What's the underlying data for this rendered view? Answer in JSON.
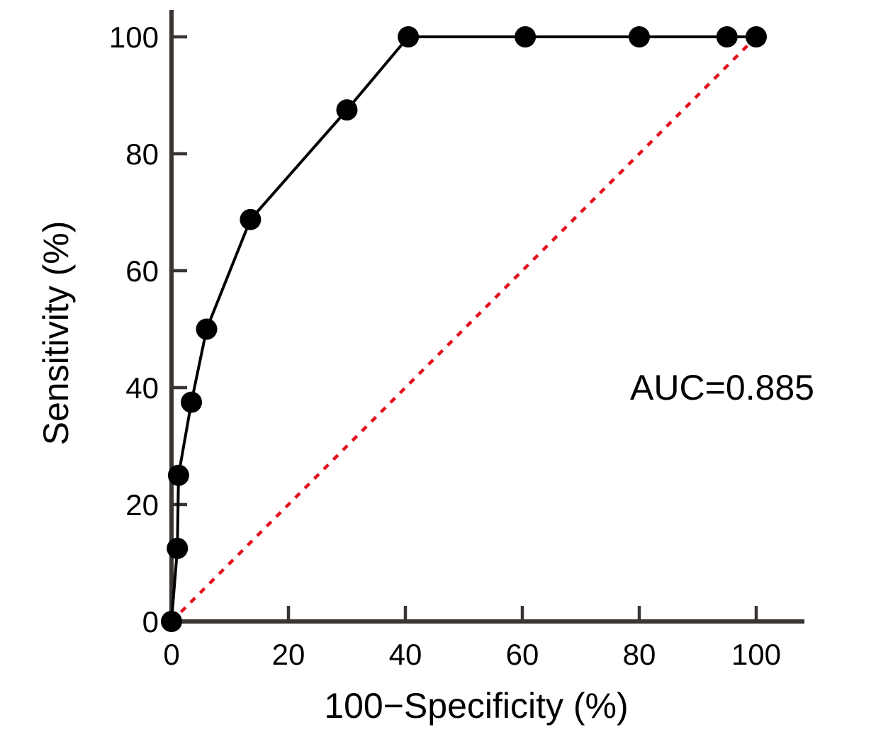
{
  "page": {
    "background": "#ffffff"
  },
  "chart_data": {
    "type": "line",
    "subtype": "roc-curve",
    "title": "",
    "xlabel": "100−Specificity (%)",
    "ylabel": "Sensitivity (%)",
    "annotation": "AUC=0.885",
    "auc": 0.885,
    "xlim": [
      0,
      100
    ],
    "ylim": [
      0,
      100
    ],
    "xticks": [
      0,
      20,
      40,
      60,
      80,
      100
    ],
    "yticks": [
      0,
      20,
      40,
      60,
      80,
      100
    ],
    "grid": false,
    "legend": "none",
    "series": [
      {
        "name": "ROC curve",
        "type": "line+marker",
        "marker": "filled-circle",
        "color": "#000000",
        "points": [
          [
            0,
            0
          ],
          [
            1,
            12.5
          ],
          [
            1.2,
            25
          ],
          [
            3.4,
            37.5
          ],
          [
            6,
            50
          ],
          [
            13.5,
            68.75
          ],
          [
            30,
            87.5
          ],
          [
            40.5,
            100
          ],
          [
            60.5,
            100
          ],
          [
            80,
            100
          ],
          [
            95,
            100
          ],
          [
            100,
            100
          ]
        ]
      },
      {
        "name": "chance diagonal",
        "type": "line",
        "style": "dashed",
        "color": "#e2101e",
        "points": [
          [
            0,
            0
          ],
          [
            100,
            100
          ]
        ]
      }
    ],
    "colors": {
      "axis": "#3a3532",
      "text": "#000000",
      "curve": "#000000",
      "diagonal": "#e2101e"
    }
  }
}
